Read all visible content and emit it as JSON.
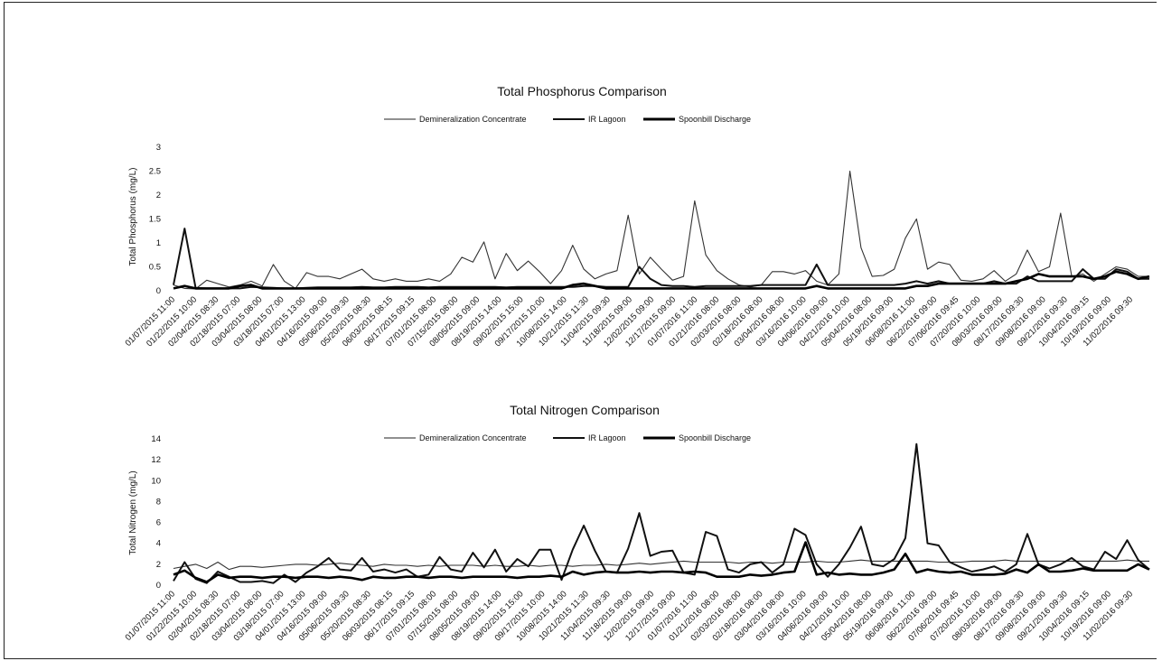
{
  "chart_data": [
    {
      "type": "line",
      "title": "Total Phosphorus Comparison",
      "ylabel": "Total Phosphorus (mg/L)",
      "xlabel": "",
      "ylim": [
        0,
        3
      ],
      "yticks": [
        "0",
        "0.5",
        "1",
        "1.5",
        "2",
        "2.5",
        "3"
      ],
      "legend_position": "top",
      "grid": false,
      "x_tick_labels": [
        "01/07/2015 11:00",
        "01/22/2015 10:00",
        "02/04/2015 08:30",
        "02/18/2015 07:00",
        "03/04/2015 08:00",
        "03/18/2015 07:00",
        "04/01/2015 13:00",
        "04/16/2015 09:00",
        "05/06/2015 09:30",
        "05/20/2015 08:30",
        "06/03/2015 08:15",
        "06/17/2015 09:15",
        "07/01/2015 08:00",
        "07/15/2015 08:00",
        "08/05/2015 09:00",
        "08/19/2015 14:00",
        "09/02/2015 15:00",
        "09/17/2015 10:00",
        "10/08/2015 14:00",
        "10/21/2015 11:30",
        "11/04/2015 09:30",
        "11/18/2015 09:00",
        "12/02/2015 09:00",
        "12/17/2015 09:00",
        "01/07/2016 11:00",
        "01/21/2016 08:00",
        "02/03/2016 08:00",
        "02/18/2016 08:00",
        "03/04/2016 08:00",
        "03/16/2016 10:00",
        "04/06/2016 09:00",
        "04/21/2016 10:00",
        "05/04/2016 08:00",
        "05/19/2016 09:00",
        "06/08/2016 11:00",
        "06/22/2016 09:00",
        "07/06/2016 09:45",
        "07/20/2016 10:00",
        "08/03/2016 09:00",
        "08/17/2016 09:30",
        "09/08/2016 09:00",
        "09/21/2016 09:30",
        "10/04/2016 09:15",
        "10/19/2016 09:00",
        "11/02/2016 09:30"
      ],
      "series": [
        {
          "name": "Demineralization Concentrate",
          "values": [
            0.12,
            0.05,
            0.04,
            0.22,
            0.15,
            0.08,
            0.12,
            0.2,
            0.1,
            0.55,
            0.2,
            0.05,
            0.38,
            0.3,
            0.3,
            0.25,
            0.35,
            0.45,
            0.25,
            0.2,
            0.25,
            0.2,
            0.2,
            0.25,
            0.2,
            0.35,
            0.7,
            0.6,
            1.02,
            0.25,
            0.78,
            0.42,
            0.62,
            0.4,
            0.15,
            0.42,
            0.95,
            0.45,
            0.25,
            0.35,
            0.42,
            1.58,
            0.35,
            0.7,
            0.45,
            0.22,
            0.3,
            1.88,
            0.75,
            0.42,
            0.25,
            0.12,
            0.08,
            0.12,
            0.4,
            0.4,
            0.35,
            0.42,
            0.2,
            0.12,
            0.35,
            2.5,
            0.9,
            0.3,
            0.32,
            0.45,
            1.1,
            1.5,
            0.45,
            0.6,
            0.55,
            0.22,
            0.2,
            0.25,
            0.42,
            0.2,
            0.35,
            0.85,
            0.4,
            0.5,
            1.62,
            0.3,
            0.35,
            0.2,
            0.35,
            0.5,
            0.45,
            0.3,
            0.3
          ]
        },
        {
          "name": "IR Lagoon",
          "values": [
            0.12,
            1.3,
            0.06,
            0.05,
            0.05,
            0.05,
            0.05,
            0.08,
            0.07,
            0.06,
            0.05,
            0.05,
            0.06,
            0.07,
            0.07,
            0.07,
            0.07,
            0.08,
            0.07,
            0.07,
            0.08,
            0.08,
            0.08,
            0.07,
            0.08,
            0.08,
            0.08,
            0.08,
            0.08,
            0.08,
            0.07,
            0.08,
            0.08,
            0.08,
            0.08,
            0.08,
            0.08,
            0.1,
            0.1,
            0.08,
            0.08,
            0.08,
            0.5,
            0.25,
            0.12,
            0.1,
            0.1,
            0.08,
            0.1,
            0.1,
            0.1,
            0.1,
            0.1,
            0.12,
            0.12,
            0.12,
            0.12,
            0.12,
            0.55,
            0.12,
            0.12,
            0.12,
            0.12,
            0.12,
            0.12,
            0.12,
            0.15,
            0.2,
            0.15,
            0.2,
            0.15,
            0.15,
            0.15,
            0.15,
            0.2,
            0.15,
            0.15,
            0.3,
            0.2,
            0.2,
            0.2,
            0.2,
            0.45,
            0.25,
            0.25,
            0.45,
            0.4,
            0.25,
            0.25
          ]
        },
        {
          "name": "Spoonbill Discharge",
          "values": [
            0.05,
            0.1,
            0.05,
            0.05,
            0.05,
            0.05,
            0.1,
            0.12,
            0.05,
            0.05,
            0.05,
            0.05,
            0.05,
            0.05,
            0.05,
            0.05,
            0.05,
            0.05,
            0.05,
            0.05,
            0.05,
            0.05,
            0.05,
            0.05,
            0.05,
            0.05,
            0.05,
            0.05,
            0.05,
            0.05,
            0.05,
            0.05,
            0.05,
            0.05,
            0.05,
            0.05,
            0.12,
            0.15,
            0.1,
            0.05,
            0.05,
            0.05,
            0.05,
            0.05,
            0.05,
            0.05,
            0.05,
            0.05,
            0.05,
            0.05,
            0.05,
            0.05,
            0.05,
            0.05,
            0.05,
            0.05,
            0.05,
            0.05,
            0.1,
            0.05,
            0.05,
            0.05,
            0.05,
            0.05,
            0.05,
            0.05,
            0.05,
            0.1,
            0.1,
            0.15,
            0.15,
            0.15,
            0.15,
            0.15,
            0.15,
            0.15,
            0.2,
            0.25,
            0.35,
            0.3,
            0.3,
            0.3,
            0.3,
            0.25,
            0.3,
            0.4,
            0.35,
            0.25,
            0.3
          ]
        }
      ]
    },
    {
      "type": "line",
      "title": "Total Nitrogen Comparison",
      "ylabel": "Total Nitrogen (mg/L)",
      "xlabel": "",
      "ylim": [
        0,
        14
      ],
      "yticks": [
        "0",
        "2",
        "4",
        "6",
        "8",
        "10",
        "12",
        "14"
      ],
      "legend_position": "top",
      "grid": false,
      "x_tick_labels": [
        "01/07/2015 11:00",
        "01/22/2015 10:00",
        "02/04/2015 08:30",
        "02/18/2015 07:00",
        "03/04/2015 08:00",
        "03/18/2015 07:00",
        "04/01/2015 13:00",
        "04/16/2015 09:00",
        "05/06/2015 09:30",
        "05/20/2015 08:30",
        "06/03/2015 08:15",
        "06/17/2015 09:15",
        "07/01/2015 08:00",
        "07/15/2015 08:00",
        "08/05/2015 09:00",
        "08/19/2015 14:00",
        "09/02/2015 15:00",
        "09/17/2015 10:00",
        "10/08/2015 14:00",
        "10/21/2015 11:30",
        "11/04/2015 09:30",
        "11/18/2015 09:00",
        "12/02/2015 09:00",
        "12/17/2015 09:00",
        "01/07/2016 11:00",
        "01/21/2016 08:00",
        "02/03/2016 08:00",
        "02/18/2016 08:00",
        "03/04/2016 08:00",
        "03/16/2016 10:00",
        "04/06/2016 09:00",
        "04/21/2016 10:00",
        "05/04/2016 08:00",
        "05/19/2016 09:00",
        "06/08/2016 11:00",
        "06/22/2016 09:00",
        "07/06/2016 09:45",
        "07/20/2016 10:00",
        "08/03/2016 09:00",
        "08/17/2016 09:30",
        "09/08/2016 09:00",
        "09/21/2016 09:30",
        "10/04/2016 09:15",
        "10/19/2016 09:00",
        "11/02/2016 09:30"
      ],
      "series": [
        {
          "name": "Demineralization Concentrate",
          "values": [
            1.6,
            1.8,
            2.0,
            1.6,
            2.2,
            1.5,
            1.8,
            1.8,
            1.7,
            1.8,
            1.9,
            2.0,
            2.0,
            1.9,
            2.0,
            2.1,
            2.0,
            1.9,
            1.8,
            2.0,
            1.9,
            1.9,
            1.8,
            1.9,
            1.8,
            1.9,
            1.9,
            1.9,
            1.8,
            1.9,
            1.8,
            1.8,
            1.9,
            1.8,
            1.9,
            1.9,
            1.8,
            1.9,
            1.9,
            2.0,
            1.9,
            2.0,
            2.1,
            2.0,
            2.1,
            2.2,
            2.3,
            2.2,
            2.2,
            2.2,
            2.2,
            2.1,
            2.2,
            2.2,
            2.1,
            2.2,
            2.2,
            2.2,
            2.3,
            2.2,
            2.2,
            2.3,
            2.4,
            2.3,
            2.3,
            2.3,
            2.3,
            2.3,
            2.3,
            2.2,
            2.2,
            2.2,
            2.3,
            2.3,
            2.3,
            2.4,
            2.3,
            2.3,
            2.3,
            2.3,
            2.3,
            2.3,
            2.3,
            2.3,
            2.3,
            2.3,
            2.4,
            2.3,
            2.3
          ]
        },
        {
          "name": "IR Lagoon",
          "values": [
            0.4,
            2.2,
            0.6,
            0.2,
            1.3,
            0.8,
            0.3,
            0.3,
            0.4,
            0.2,
            1.0,
            0.3,
            1.2,
            1.8,
            2.6,
            1.5,
            1.4,
            2.6,
            1.3,
            1.5,
            1.2,
            1.5,
            0.8,
            1.0,
            2.7,
            1.5,
            1.3,
            3.1,
            1.7,
            3.4,
            1.3,
            2.5,
            1.8,
            3.4,
            3.4,
            0.5,
            3.4,
            5.7,
            3.3,
            1.3,
            1.2,
            3.5,
            6.9,
            2.8,
            3.2,
            3.3,
            1.2,
            1.0,
            5.1,
            4.7,
            1.5,
            1.2,
            2.0,
            2.2,
            1.2,
            2.0,
            5.4,
            4.8,
            2.0,
            0.8,
            2.0,
            3.6,
            5.6,
            2.0,
            1.8,
            2.5,
            4.5,
            13.5,
            4.0,
            3.8,
            2.2,
            1.7,
            1.3,
            1.5,
            1.8,
            1.3,
            2.0,
            4.9,
            2.0,
            1.6,
            2.0,
            2.6,
            1.8,
            1.5,
            3.2,
            2.5,
            4.3,
            2.4,
            1.5
          ]
        },
        {
          "name": "Spoonbill Discharge",
          "values": [
            1.0,
            1.4,
            0.7,
            0.3,
            1.0,
            0.7,
            0.8,
            0.8,
            0.7,
            0.8,
            0.8,
            0.7,
            0.8,
            0.8,
            0.7,
            0.8,
            0.7,
            0.5,
            0.8,
            0.7,
            0.7,
            0.8,
            0.8,
            0.7,
            0.8,
            0.8,
            0.7,
            0.8,
            0.8,
            0.8,
            0.8,
            0.7,
            0.8,
            0.8,
            0.9,
            0.8,
            1.3,
            1.0,
            1.2,
            1.3,
            1.2,
            1.2,
            1.3,
            1.2,
            1.3,
            1.3,
            1.2,
            1.3,
            1.2,
            0.8,
            0.8,
            0.8,
            1.0,
            0.9,
            1.0,
            1.2,
            1.3,
            4.1,
            1.0,
            1.2,
            1.0,
            1.1,
            1.0,
            1.0,
            1.2,
            1.5,
            3.0,
            1.2,
            1.5,
            1.3,
            1.2,
            1.3,
            1.0,
            1.0,
            1.0,
            1.1,
            1.5,
            1.2,
            2.0,
            1.3,
            1.3,
            1.4,
            1.6,
            1.4,
            1.4,
            1.4,
            1.4,
            2.0,
            1.5
          ]
        }
      ]
    }
  ]
}
